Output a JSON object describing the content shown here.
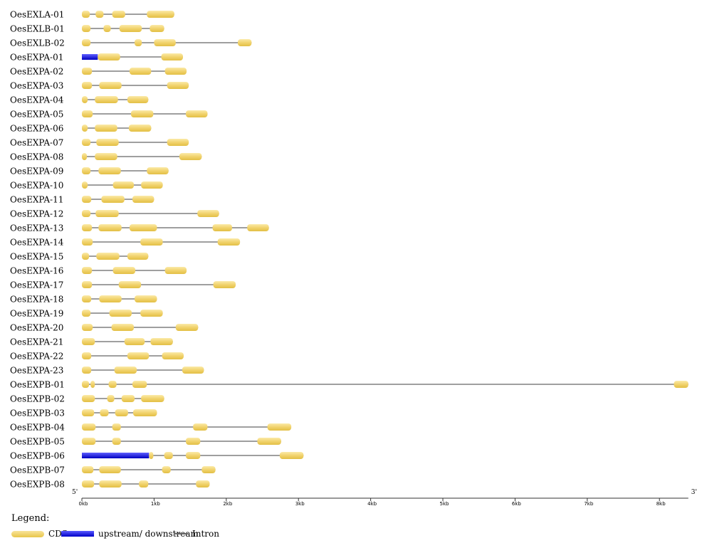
{
  "axis": {
    "five_prime": "5'",
    "three_prime": "3'",
    "ticks": [
      {
        "kb": 0,
        "label": "0kb"
      },
      {
        "kb": 1,
        "label": "1kb"
      },
      {
        "kb": 2,
        "label": "2kb"
      },
      {
        "kb": 3,
        "label": "3kb"
      },
      {
        "kb": 4,
        "label": "4kb"
      },
      {
        "kb": 5,
        "label": "5kb"
      },
      {
        "kb": 6,
        "label": "6kb"
      },
      {
        "kb": 7,
        "label": "7kb"
      },
      {
        "kb": 8,
        "label": "8kb"
      }
    ],
    "max_kb": 8.4
  },
  "legend": {
    "title": "Legend:",
    "cds": "CDS",
    "upstream": "upstream/ downstream",
    "intron": "Intron"
  },
  "colors": {
    "cds": "#f1d36d",
    "upstream": "#1a1ae6",
    "intron": "#666666"
  },
  "genes": [
    {
      "name": "OesEXLA-01",
      "end": 1.28,
      "cds": [
        [
          0,
          0.11
        ],
        [
          0.19,
          0.3
        ],
        [
          0.42,
          0.6
        ],
        [
          0.9,
          1.28
        ]
      ]
    },
    {
      "name": "OesEXLB-01",
      "end": 1.14,
      "cds": [
        [
          0,
          0.12
        ],
        [
          0.3,
          0.4
        ],
        [
          0.52,
          0.83
        ],
        [
          0.94,
          1.14
        ]
      ]
    },
    {
      "name": "OesEXLB-02",
      "end": 2.35,
      "cds": [
        [
          0,
          0.12
        ],
        [
          0.73,
          0.83
        ],
        [
          1.0,
          1.3
        ],
        [
          2.16,
          2.35
        ]
      ]
    },
    {
      "name": "OesEXPA-01",
      "end": 1.4,
      "up": [
        0,
        0.22
      ],
      "cds": [
        [
          0.22,
          0.53
        ],
        [
          1.1,
          1.4
        ]
      ]
    },
    {
      "name": "OesEXPA-02",
      "end": 1.45,
      "cds": [
        [
          0,
          0.14
        ],
        [
          0.66,
          0.96
        ],
        [
          1.15,
          1.45
        ]
      ]
    },
    {
      "name": "OesEXPA-03",
      "end": 1.48,
      "cds": [
        [
          0,
          0.14
        ],
        [
          0.24,
          0.55
        ],
        [
          1.18,
          1.48
        ]
      ]
    },
    {
      "name": "OesEXPA-04",
      "end": 0.92,
      "cds": [
        [
          0,
          0.08
        ],
        [
          0.18,
          0.5
        ],
        [
          0.63,
          0.92
        ]
      ]
    },
    {
      "name": "OesEXPA-05",
      "end": 1.74,
      "cds": [
        [
          0,
          0.15
        ],
        [
          0.68,
          0.99
        ],
        [
          1.44,
          1.74
        ]
      ]
    },
    {
      "name": "OesEXPA-06",
      "end": 0.96,
      "cds": [
        [
          0,
          0.08
        ],
        [
          0.18,
          0.49
        ],
        [
          0.65,
          0.96
        ]
      ]
    },
    {
      "name": "OesEXPA-07",
      "end": 1.48,
      "cds": [
        [
          0,
          0.12
        ],
        [
          0.2,
          0.51
        ],
        [
          1.18,
          1.48
        ]
      ]
    },
    {
      "name": "OesEXPA-08",
      "end": 1.66,
      "cds": [
        [
          0,
          0.07
        ],
        [
          0.18,
          0.49
        ],
        [
          1.35,
          1.66
        ]
      ]
    },
    {
      "name": "OesEXPA-09",
      "end": 1.2,
      "cds": [
        [
          0,
          0.12
        ],
        [
          0.23,
          0.54
        ],
        [
          0.9,
          1.2
        ]
      ]
    },
    {
      "name": "OesEXPA-10",
      "end": 1.12,
      "cds": [
        [
          0,
          0.08
        ],
        [
          0.43,
          0.72
        ],
        [
          0.82,
          1.12
        ]
      ]
    },
    {
      "name": "OesEXPA-11",
      "end": 1.0,
      "cds": [
        [
          0,
          0.13
        ],
        [
          0.27,
          0.59
        ],
        [
          0.7,
          1.0
        ]
      ]
    },
    {
      "name": "OesEXPA-12",
      "end": 1.9,
      "cds": [
        [
          0,
          0.12
        ],
        [
          0.19,
          0.51
        ],
        [
          1.6,
          1.9
        ]
      ]
    },
    {
      "name": "OesEXPA-13",
      "end": 2.59,
      "cds": [
        [
          0,
          0.14
        ],
        [
          0.23,
          0.55
        ],
        [
          0.66,
          1.04
        ],
        [
          1.81,
          2.08
        ],
        [
          2.29,
          2.59
        ]
      ]
    },
    {
      "name": "OesEXPA-14",
      "end": 2.19,
      "cds": [
        [
          0,
          0.15
        ],
        [
          0.81,
          1.12
        ],
        [
          1.88,
          2.19
        ]
      ]
    },
    {
      "name": "OesEXPA-15",
      "end": 0.92,
      "cds": [
        [
          0,
          0.1
        ],
        [
          0.2,
          0.52
        ],
        [
          0.63,
          0.92
        ]
      ]
    },
    {
      "name": "OesEXPA-16",
      "end": 1.45,
      "cds": [
        [
          0,
          0.14
        ],
        [
          0.43,
          0.74
        ],
        [
          1.15,
          1.45
        ]
      ]
    },
    {
      "name": "OesEXPA-17",
      "end": 2.13,
      "cds": [
        [
          0,
          0.14
        ],
        [
          0.51,
          0.82
        ],
        [
          1.82,
          2.13
        ]
      ]
    },
    {
      "name": "OesEXPA-18",
      "end": 1.04,
      "cds": [
        [
          0,
          0.13
        ],
        [
          0.24,
          0.55
        ],
        [
          0.73,
          1.04
        ]
      ]
    },
    {
      "name": "OesEXPA-19",
      "end": 1.12,
      "cds": [
        [
          0,
          0.12
        ],
        [
          0.38,
          0.69
        ],
        [
          0.81,
          1.12
        ]
      ]
    },
    {
      "name": "OesEXPA-20",
      "end": 1.61,
      "cds": [
        [
          0,
          0.15
        ],
        [
          0.41,
          0.72
        ],
        [
          1.3,
          1.61
        ]
      ]
    },
    {
      "name": "OesEXPA-21",
      "end": 1.26,
      "cds": [
        [
          0,
          0.18
        ],
        [
          0.59,
          0.87
        ],
        [
          0.95,
          1.26
        ]
      ]
    },
    {
      "name": "OesEXPA-22",
      "end": 1.41,
      "cds": [
        [
          0,
          0.13
        ],
        [
          0.63,
          0.93
        ],
        [
          1.11,
          1.41
        ]
      ]
    },
    {
      "name": "OesEXPA-23",
      "end": 1.69,
      "cds": [
        [
          0,
          0.13
        ],
        [
          0.45,
          0.76
        ],
        [
          1.39,
          1.69
        ]
      ]
    },
    {
      "name": "OesEXPB-01",
      "end": 8.4,
      "cds": [
        [
          0,
          0.1
        ],
        [
          0.12,
          0.18
        ],
        [
          0.37,
          0.48
        ],
        [
          0.7,
          0.9
        ],
        [
          8.2,
          8.4
        ]
      ]
    },
    {
      "name": "OesEXPB-02",
      "end": 1.14,
      "cds": [
        [
          0,
          0.18
        ],
        [
          0.35,
          0.45
        ],
        [
          0.55,
          0.73
        ],
        [
          0.82,
          1.14
        ]
      ]
    },
    {
      "name": "OesEXPB-03",
      "end": 1.04,
      "cds": [
        [
          0,
          0.17
        ],
        [
          0.25,
          0.37
        ],
        [
          0.46,
          0.64
        ],
        [
          0.71,
          1.04
        ]
      ]
    },
    {
      "name": "OesEXPB-04",
      "end": 2.9,
      "cds": [
        [
          0,
          0.19
        ],
        [
          0.42,
          0.54
        ],
        [
          1.54,
          1.74
        ],
        [
          2.57,
          2.9
        ]
      ]
    },
    {
      "name": "OesEXPB-05",
      "end": 2.76,
      "cds": [
        [
          0,
          0.19
        ],
        [
          0.42,
          0.54
        ],
        [
          1.44,
          1.64
        ],
        [
          2.43,
          2.76
        ]
      ]
    },
    {
      "name": "OesEXPB-06",
      "end": 3.07,
      "up": [
        0,
        0.93
      ],
      "cds": [
        [
          0.93,
          0.99
        ],
        [
          1.14,
          1.26
        ],
        [
          1.44,
          1.64
        ],
        [
          2.74,
          3.07
        ]
      ]
    },
    {
      "name": "OesEXPB-07",
      "end": 1.85,
      "cds": [
        [
          0,
          0.16
        ],
        [
          0.24,
          0.54
        ],
        [
          1.11,
          1.23
        ],
        [
          1.66,
          1.85
        ]
      ]
    },
    {
      "name": "OesEXPB-08",
      "end": 1.77,
      "cds": [
        [
          0,
          0.17
        ],
        [
          0.24,
          0.55
        ],
        [
          0.79,
          0.92
        ],
        [
          1.58,
          1.77
        ]
      ]
    }
  ]
}
